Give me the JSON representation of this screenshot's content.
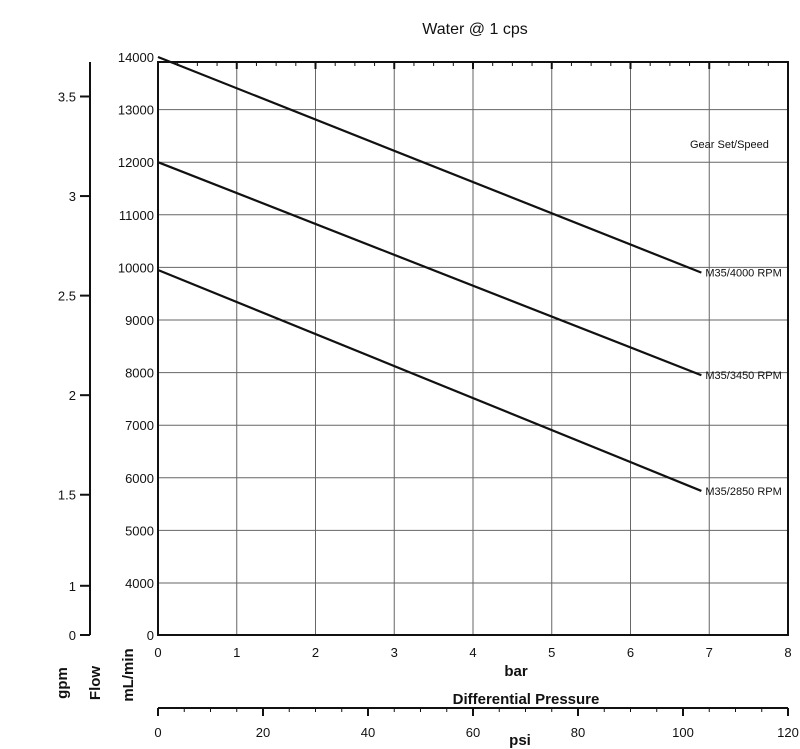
{
  "chart_data": {
    "type": "line",
    "title": "Water @ 1 cps",
    "legend_title": "Gear Set/Speed",
    "xlabel": "bar",
    "xlabel_secondary": "psi",
    "xlabel_shared": "Differential Pressure",
    "ylabel": "mL/min",
    "ylabel_secondary": "gpm",
    "ylabel_shared": "Flow",
    "xlim": [
      0,
      8
    ],
    "ylim": [
      0,
      14000
    ],
    "x_ticks": [
      "0",
      "1",
      "2",
      "3",
      "4",
      "5",
      "6",
      "7",
      "8"
    ],
    "y_ticks": [
      "0",
      "4000",
      "5000",
      "6000",
      "7000",
      "8000",
      "9000",
      "10000",
      "11000",
      "12000",
      "13000",
      "14000"
    ],
    "psi_ticks": [
      "0",
      "20",
      "40",
      "60",
      "80",
      "100",
      "120"
    ],
    "gpm_ticks": [
      "0",
      "1",
      "1.5",
      "2",
      "2.5",
      "3",
      "3.5"
    ],
    "grid": true,
    "series": [
      {
        "name": "M35/4000 RPM",
        "x": [
          0,
          6.9
        ],
        "y": [
          14000,
          9900
        ]
      },
      {
        "name": "M35/3450 RPM",
        "x": [
          0,
          6.9
        ],
        "y": [
          12000,
          7950
        ]
      },
      {
        "name": "M35/2850 RPM",
        "x": [
          0,
          6.9
        ],
        "y": [
          9950,
          5750
        ]
      }
    ]
  }
}
